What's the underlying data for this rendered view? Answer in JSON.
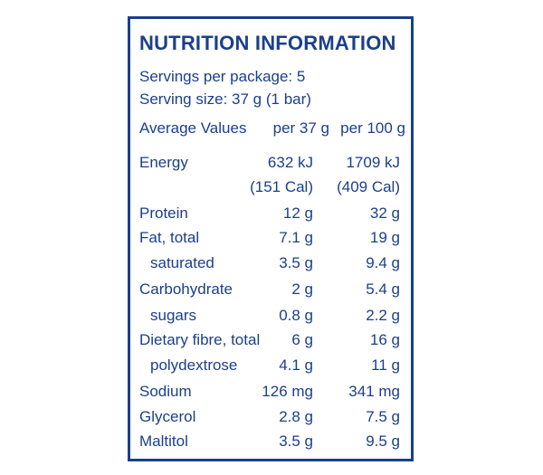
{
  "panel": {
    "title": "NUTRITION INFORMATION",
    "servings_per_package": "Servings per package: 5",
    "serving_size": "Serving size: 37 g (1 bar)",
    "header": {
      "label": "Average Values",
      "col1": "per 37 g",
      "col2": "per 100 g"
    },
    "rows": [
      {
        "label": "Energy",
        "per_serving": "632 kJ",
        "per_100g": "1709 kJ"
      },
      {
        "label": "",
        "per_serving": "(151 Cal)",
        "per_100g": "(409 Cal)"
      },
      {
        "label": "Protein",
        "per_serving": "12 g",
        "per_100g": "32 g"
      },
      {
        "label": "Fat, total",
        "per_serving": "7.1 g",
        "per_100g": "19 g"
      },
      {
        "label": "saturated",
        "per_serving": "3.5 g",
        "per_100g": "9.4 g"
      },
      {
        "label": "Carbohydrate",
        "per_serving": "2 g",
        "per_100g": "5.4 g"
      },
      {
        "label": "sugars",
        "per_serving": "0.8 g",
        "per_100g": "2.2 g"
      },
      {
        "label": "Dietary fibre, total",
        "per_serving": "6 g",
        "per_100g": "16 g"
      },
      {
        "label": "polydextrose",
        "per_serving": "4.1 g",
        "per_100g": "11 g"
      },
      {
        "label": "Sodium",
        "per_serving": "126 mg",
        "per_100g": "341 mg"
      },
      {
        "label": "Glycerol",
        "per_serving": "2.8 g",
        "per_100g": "7.5 g"
      },
      {
        "label": "Maltitol",
        "per_serving": "3.5 g",
        "per_100g": "9.5 g"
      }
    ]
  }
}
